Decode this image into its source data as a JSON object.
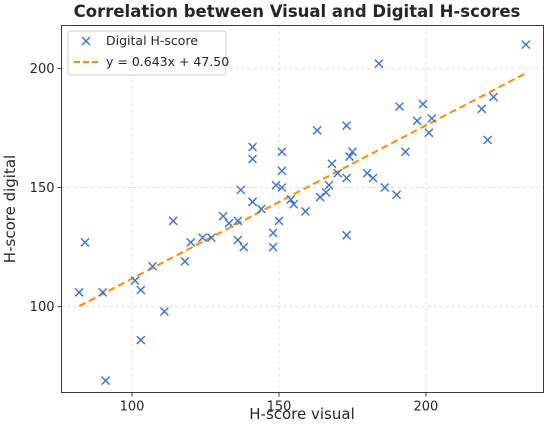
{
  "chart_data": {
    "type": "scatter",
    "title": "Correlation between Visual and Digital H-scores",
    "xlabel": "H-score visual",
    "ylabel": "H-score digital",
    "xlim": [
      76,
      240
    ],
    "ylim": [
      64,
      218
    ],
    "xticks": [
      100,
      150,
      200
    ],
    "yticks": [
      100,
      150,
      200
    ],
    "grid": true,
    "legend_position": "top-left",
    "series": [
      {
        "name": "Digital H-score",
        "marker": "x",
        "color": "#3b73d9",
        "points": [
          [
            82,
            106
          ],
          [
            84,
            127
          ],
          [
            90,
            106
          ],
          [
            91,
            69
          ],
          [
            101,
            111
          ],
          [
            103,
            107
          ],
          [
            103,
            86
          ],
          [
            107,
            117
          ],
          [
            111,
            98
          ],
          [
            114,
            136
          ],
          [
            118,
            119
          ],
          [
            120,
            127
          ],
          [
            124,
            129
          ],
          [
            127,
            129
          ],
          [
            131,
            138
          ],
          [
            133,
            135
          ],
          [
            136,
            136
          ],
          [
            136,
            128
          ],
          [
            137,
            149
          ],
          [
            138,
            125
          ],
          [
            141,
            144
          ],
          [
            141,
            144
          ],
          [
            141,
            162
          ],
          [
            141,
            167
          ],
          [
            144,
            141
          ],
          [
            148,
            125
          ],
          [
            148,
            131
          ],
          [
            149,
            151
          ],
          [
            150,
            136
          ],
          [
            151,
            157
          ],
          [
            151,
            150
          ],
          [
            151,
            165
          ],
          [
            154,
            145
          ],
          [
            155,
            143
          ],
          [
            159,
            140
          ],
          [
            163,
            174
          ],
          [
            164,
            146
          ],
          [
            166,
            148
          ],
          [
            167,
            151
          ],
          [
            168,
            160
          ],
          [
            170,
            156
          ],
          [
            173,
            154
          ],
          [
            173,
            130
          ],
          [
            173,
            176
          ],
          [
            174,
            163
          ],
          [
            175,
            165
          ],
          [
            180,
            156
          ],
          [
            182,
            154
          ],
          [
            184,
            202
          ],
          [
            186,
            150
          ],
          [
            190,
            147
          ],
          [
            191,
            184
          ],
          [
            193,
            165
          ],
          [
            197,
            178
          ],
          [
            199,
            185
          ],
          [
            201,
            173
          ],
          [
            202,
            179
          ],
          [
            219,
            183
          ],
          [
            221,
            170
          ],
          [
            223,
            188
          ],
          [
            234,
            210
          ]
        ]
      },
      {
        "name": "y = 0.643x + 47.50",
        "kind": "line",
        "style": "dashed",
        "color": "#ff8c00",
        "slope": 0.643,
        "intercept": 47.5,
        "x_range": [
          82,
          234
        ]
      }
    ]
  }
}
